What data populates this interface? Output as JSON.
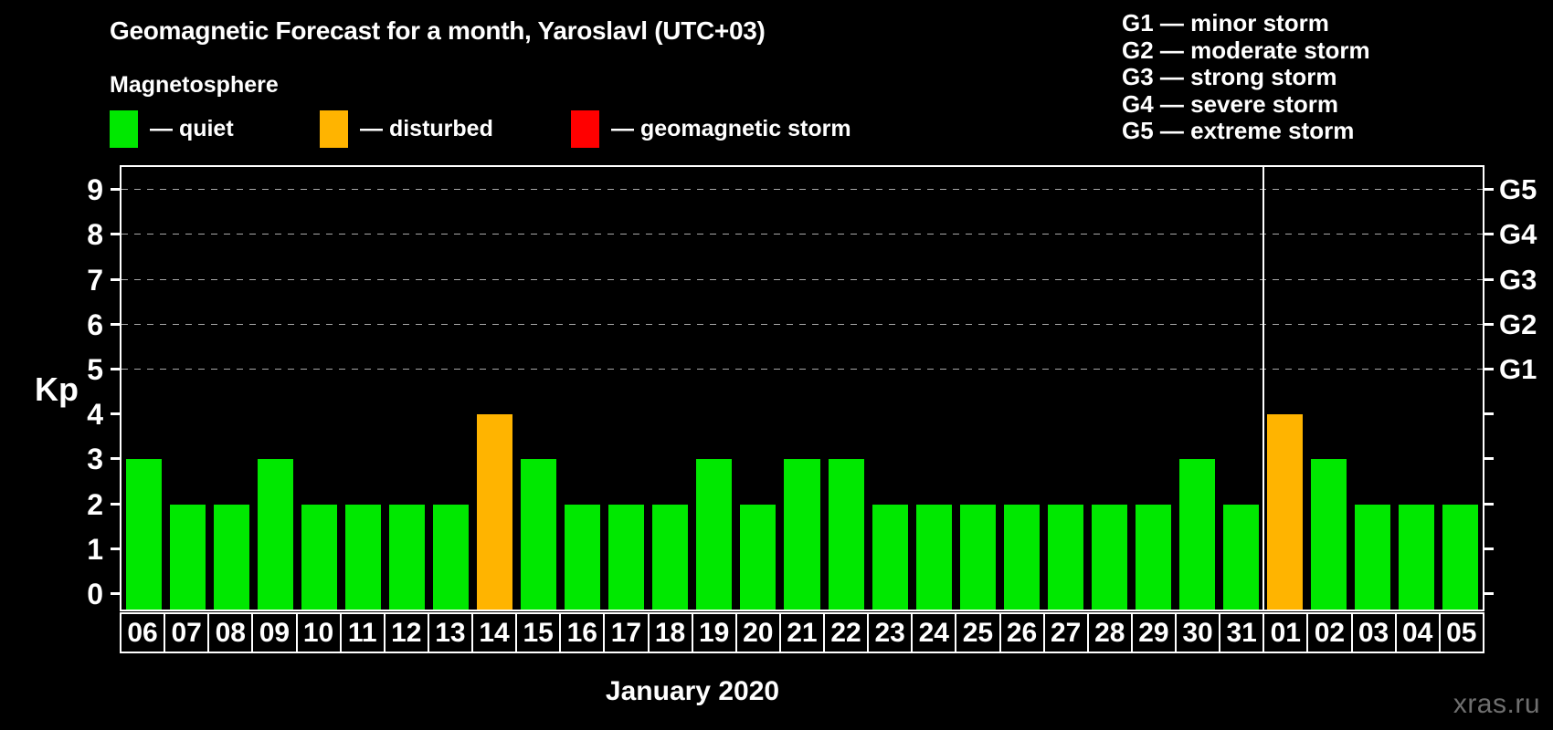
{
  "title": "Geomagnetic Forecast for a month, Yaroslavl (UTC+03)",
  "subtitle": "Magnetosphere",
  "legend": {
    "items": [
      {
        "name": "quiet",
        "label": "— quiet",
        "color": "#00E800"
      },
      {
        "name": "disturbed",
        "label": "— disturbed",
        "color": "#FFB400"
      },
      {
        "name": "storm",
        "label": "— geomagnetic storm",
        "color": "#FF0000"
      }
    ]
  },
  "g_legend": {
    "lines": [
      "G1 — minor storm",
      "G2 — moderate storm",
      "G3 — strong storm",
      "G4 — severe storm",
      "G5 — extreme storm"
    ]
  },
  "watermark": "xras.ru",
  "chart_data": {
    "type": "bar",
    "title": "Geomagnetic Forecast for a month, Yaroslavl (UTC+03)",
    "xlabel": "January 2020",
    "ylabel": "Kp",
    "ylim": [
      0,
      9.5
    ],
    "y_ticks": [
      0,
      1,
      2,
      3,
      4,
      5,
      6,
      7,
      8,
      9
    ],
    "gridlines": [
      5,
      6,
      7,
      8,
      9
    ],
    "right_axis_labels": [
      {
        "kp": 5,
        "label": "G1"
      },
      {
        "kp": 6,
        "label": "G2"
      },
      {
        "kp": 7,
        "label": "G3"
      },
      {
        "kp": 8,
        "label": "G4"
      },
      {
        "kp": 9,
        "label": "G5"
      }
    ],
    "categories": [
      "06",
      "07",
      "08",
      "09",
      "10",
      "11",
      "12",
      "13",
      "14",
      "15",
      "16",
      "17",
      "18",
      "19",
      "20",
      "21",
      "22",
      "23",
      "24",
      "25",
      "26",
      "27",
      "28",
      "29",
      "30",
      "31",
      "01",
      "02",
      "03",
      "04",
      "05"
    ],
    "values": [
      3,
      2,
      2,
      3,
      2,
      2,
      2,
      2,
      4,
      3,
      2,
      2,
      2,
      3,
      2,
      3,
      3,
      2,
      2,
      2,
      2,
      2,
      2,
      2,
      3,
      2,
      4,
      3,
      2,
      2,
      2
    ],
    "statuses": [
      "quiet",
      "quiet",
      "quiet",
      "quiet",
      "quiet",
      "quiet",
      "quiet",
      "quiet",
      "disturbed",
      "quiet",
      "quiet",
      "quiet",
      "quiet",
      "quiet",
      "quiet",
      "quiet",
      "quiet",
      "quiet",
      "quiet",
      "quiet",
      "quiet",
      "quiet",
      "quiet",
      "quiet",
      "quiet",
      "quiet",
      "disturbed",
      "quiet",
      "quiet",
      "quiet",
      "quiet"
    ],
    "colors": {
      "quiet": "#00E800",
      "disturbed": "#FFB400",
      "storm": "#FF0000"
    },
    "month_boundary_after_index": 25,
    "legend_position": "top",
    "grid": "dashed horizontal at Kp 5–9 only"
  }
}
